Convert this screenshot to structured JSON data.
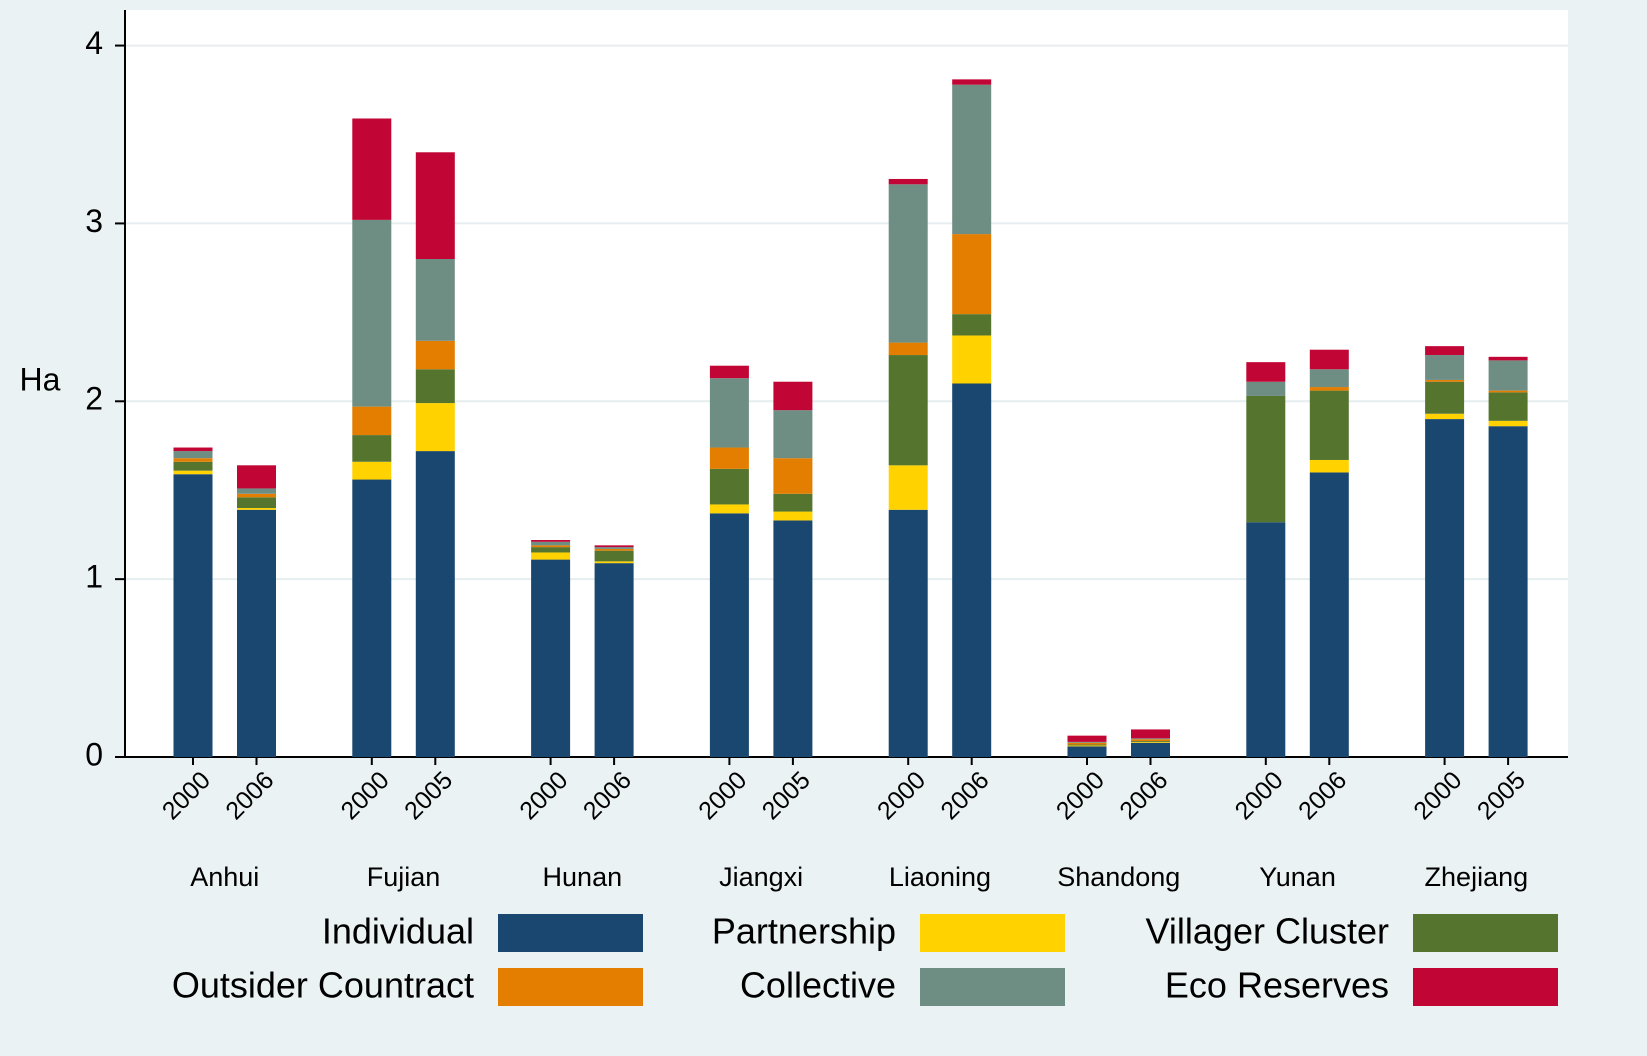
{
  "chart_data": {
    "type": "stacked_bar",
    "y_label": "Ha",
    "groups": [
      "Anhui",
      "Fujian",
      "Hunan",
      "Jiangxi",
      "Liaoning",
      "Shandong",
      "Yunan",
      "Zhejiang"
    ],
    "categories": [
      "2000",
      "2006",
      "2000",
      "2005",
      "2000",
      "2006",
      "2000",
      "2005",
      "2000",
      "2006",
      "2000",
      "2006",
      "2000",
      "2006",
      "2000",
      "2005"
    ],
    "series": [
      {
        "name": "Individual",
        "color": "#1a476f",
        "values": [
          1.59,
          1.39,
          1.56,
          1.72,
          1.11,
          1.09,
          1.37,
          1.33,
          1.39,
          2.1,
          0.06,
          0.08,
          1.32,
          1.6,
          1.9,
          1.86
        ]
      },
      {
        "name": "Partnership",
        "color": "#ffd200",
        "values": [
          0.02,
          0.01,
          0.1,
          0.27,
          0.04,
          0.01,
          0.05,
          0.05,
          0.25,
          0.27,
          0.005,
          0.005,
          0,
          0.07,
          0.03,
          0.03
        ]
      },
      {
        "name": "Villager Cluster",
        "color": "#55752f",
        "values": [
          0.05,
          0.06,
          0.15,
          0.19,
          0.03,
          0.06,
          0.2,
          0.1,
          0.62,
          0.12,
          0.005,
          0.005,
          0.71,
          0.39,
          0.18,
          0.16
        ]
      },
      {
        "name": "Outsider Countract",
        "color": "#e37e00",
        "values": [
          0.02,
          0.02,
          0.16,
          0.16,
          0.01,
          0.01,
          0.12,
          0.2,
          0.07,
          0.45,
          0.01,
          0.01,
          0,
          0.02,
          0.01,
          0.01
        ]
      },
      {
        "name": "Collective",
        "color": "#6e8e84",
        "values": [
          0.04,
          0.03,
          1.05,
          0.46,
          0.02,
          0.01,
          0.39,
          0.27,
          0.89,
          0.84,
          0.005,
          0.005,
          0.08,
          0.1,
          0.14,
          0.17
        ]
      },
      {
        "name": "Eco Reserves",
        "color": "#c10534",
        "values": [
          0.02,
          0.13,
          0.57,
          0.6,
          0.01,
          0.01,
          0.07,
          0.16,
          0.03,
          0.03,
          0.035,
          0.05,
          0.11,
          0.11,
          0.05,
          0.02
        ]
      }
    ],
    "ylim": [
      0,
      4.2
    ],
    "yticks": [
      0,
      1,
      2,
      3,
      4
    ],
    "grid": true
  }
}
